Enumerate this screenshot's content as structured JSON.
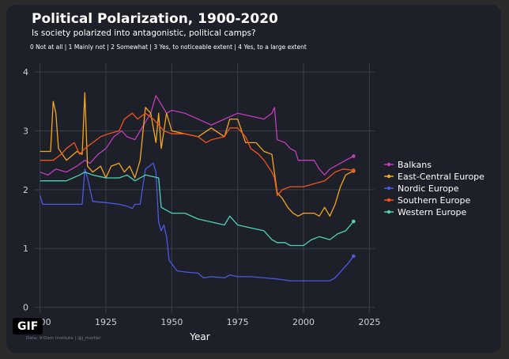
{
  "badge": "GIF",
  "credit": "Data: V-Dem Institute | @j_marlier",
  "colors": {
    "background": "#1d1f29",
    "grid": "#3a3d4a",
    "text": "#ffffff",
    "axis_text": "#cfd0d6"
  },
  "chart_data": {
    "type": "line",
    "title": "Political Polarization, 1900-2020",
    "subtitle": "Is society polarized into antagonistic, political camps?",
    "scale_note": "0 Not at all | 1 Mainly not | 2 Somewhat | 3 Yes, to noticeable extent | 4 Yes, to a large extent",
    "xlabel": "Year",
    "ylabel": "",
    "xlim": [
      1898,
      2027
    ],
    "ylim": [
      -0.1,
      4.15
    ],
    "xticks": [
      1900,
      1925,
      1950,
      1975,
      2000,
      2025
    ],
    "yticks": [
      0,
      1,
      2,
      3,
      4
    ],
    "grid": true,
    "legend_position": "right",
    "series": [
      {
        "name": "Balkans",
        "color": "#c23dbb",
        "points": [
          [
            1900,
            2.3
          ],
          [
            1903,
            2.25
          ],
          [
            1906,
            2.35
          ],
          [
            1910,
            2.3
          ],
          [
            1914,
            2.4
          ],
          [
            1917,
            2.5
          ],
          [
            1919,
            2.45
          ],
          [
            1922,
            2.6
          ],
          [
            1925,
            2.7
          ],
          [
            1928,
            2.9
          ],
          [
            1931,
            3.0
          ],
          [
            1933,
            2.9
          ],
          [
            1936,
            2.85
          ],
          [
            1938,
            3.0
          ],
          [
            1940,
            3.15
          ],
          [
            1942,
            3.3
          ],
          [
            1944,
            3.6
          ],
          [
            1946,
            3.45
          ],
          [
            1948,
            3.3
          ],
          [
            1950,
            3.35
          ],
          [
            1955,
            3.3
          ],
          [
            1960,
            3.2
          ],
          [
            1965,
            3.1
          ],
          [
            1970,
            3.2
          ],
          [
            1975,
            3.3
          ],
          [
            1980,
            3.25
          ],
          [
            1985,
            3.2
          ],
          [
            1988,
            3.3
          ],
          [
            1989,
            3.4
          ],
          [
            1990,
            2.85
          ],
          [
            1993,
            2.8
          ],
          [
            1995,
            2.7
          ],
          [
            1997,
            2.65
          ],
          [
            1998,
            2.5
          ],
          [
            2000,
            2.5
          ],
          [
            2004,
            2.5
          ],
          [
            2006,
            2.35
          ],
          [
            2008,
            2.25
          ],
          [
            2010,
            2.35
          ],
          [
            2014,
            2.45
          ],
          [
            2016,
            2.5
          ],
          [
            2019,
            2.57
          ]
        ]
      },
      {
        "name": "East-Central Europe",
        "color": "#f3a722",
        "points": [
          [
            1900,
            2.65
          ],
          [
            1904,
            2.65
          ],
          [
            1905,
            3.5
          ],
          [
            1906,
            3.3
          ],
          [
            1907,
            2.7
          ],
          [
            1910,
            2.5
          ],
          [
            1914,
            2.65
          ],
          [
            1916,
            2.6
          ],
          [
            1917,
            3.65
          ],
          [
            1918,
            2.4
          ],
          [
            1920,
            2.3
          ],
          [
            1923,
            2.4
          ],
          [
            1925,
            2.2
          ],
          [
            1927,
            2.4
          ],
          [
            1930,
            2.45
          ],
          [
            1932,
            2.3
          ],
          [
            1934,
            2.4
          ],
          [
            1936,
            2.2
          ],
          [
            1938,
            2.5
          ],
          [
            1940,
            3.4
          ],
          [
            1942,
            3.3
          ],
          [
            1944,
            2.8
          ],
          [
            1945,
            3.3
          ],
          [
            1946,
            2.7
          ],
          [
            1948,
            3.3
          ],
          [
            1950,
            3.0
          ],
          [
            1955,
            2.95
          ],
          [
            1960,
            2.9
          ],
          [
            1965,
            3.05
          ],
          [
            1970,
            2.9
          ],
          [
            1972,
            3.2
          ],
          [
            1975,
            3.2
          ],
          [
            1978,
            2.8
          ],
          [
            1982,
            2.8
          ],
          [
            1985,
            2.65
          ],
          [
            1988,
            2.6
          ],
          [
            1990,
            1.95
          ],
          [
            1992,
            1.85
          ],
          [
            1994,
            1.7
          ],
          [
            1996,
            1.6
          ],
          [
            1998,
            1.55
          ],
          [
            2000,
            1.6
          ],
          [
            2004,
            1.6
          ],
          [
            2006,
            1.55
          ],
          [
            2008,
            1.7
          ],
          [
            2010,
            1.55
          ],
          [
            2012,
            1.75
          ],
          [
            2014,
            2.05
          ],
          [
            2016,
            2.25
          ],
          [
            2019,
            2.32
          ]
        ]
      },
      {
        "name": "Nordic Europe",
        "color": "#4b5ae0",
        "points": [
          [
            1900,
            1.9
          ],
          [
            1901,
            1.75
          ],
          [
            1910,
            1.75
          ],
          [
            1916,
            1.75
          ],
          [
            1917,
            2.35
          ],
          [
            1918,
            2.2
          ],
          [
            1920,
            1.8
          ],
          [
            1925,
            1.78
          ],
          [
            1930,
            1.75
          ],
          [
            1933,
            1.72
          ],
          [
            1935,
            1.68
          ],
          [
            1936,
            1.75
          ],
          [
            1938,
            1.75
          ],
          [
            1940,
            2.35
          ],
          [
            1943,
            2.45
          ],
          [
            1944,
            2.3
          ],
          [
            1945,
            1.45
          ],
          [
            1946,
            1.3
          ],
          [
            1947,
            1.4
          ],
          [
            1948,
            1.2
          ],
          [
            1949,
            0.8
          ],
          [
            1952,
            0.62
          ],
          [
            1955,
            0.6
          ],
          [
            1960,
            0.58
          ],
          [
            1962,
            0.5
          ],
          [
            1965,
            0.52
          ],
          [
            1970,
            0.5
          ],
          [
            1972,
            0.55
          ],
          [
            1975,
            0.52
          ],
          [
            1980,
            0.52
          ],
          [
            1985,
            0.5
          ],
          [
            1990,
            0.48
          ],
          [
            1995,
            0.45
          ],
          [
            2000,
            0.45
          ],
          [
            2005,
            0.45
          ],
          [
            2010,
            0.45
          ],
          [
            2012,
            0.5
          ],
          [
            2015,
            0.65
          ],
          [
            2017,
            0.75
          ],
          [
            2019,
            0.87
          ]
        ]
      },
      {
        "name": "Southern Europe",
        "color": "#f2541b",
        "points": [
          [
            1900,
            2.5
          ],
          [
            1905,
            2.5
          ],
          [
            1908,
            2.6
          ],
          [
            1910,
            2.7
          ],
          [
            1913,
            2.8
          ],
          [
            1915,
            2.6
          ],
          [
            1917,
            2.7
          ],
          [
            1920,
            2.8
          ],
          [
            1923,
            2.9
          ],
          [
            1926,
            2.95
          ],
          [
            1930,
            3.0
          ],
          [
            1932,
            3.2
          ],
          [
            1935,
            3.3
          ],
          [
            1937,
            3.2
          ],
          [
            1940,
            3.3
          ],
          [
            1943,
            3.2
          ],
          [
            1945,
            3.1
          ],
          [
            1947,
            3.0
          ],
          [
            1950,
            2.95
          ],
          [
            1955,
            2.95
          ],
          [
            1960,
            2.9
          ],
          [
            1963,
            2.8
          ],
          [
            1965,
            2.85
          ],
          [
            1970,
            2.9
          ],
          [
            1972,
            3.05
          ],
          [
            1975,
            3.05
          ],
          [
            1978,
            2.9
          ],
          [
            1980,
            2.7
          ],
          [
            1983,
            2.6
          ],
          [
            1985,
            2.5
          ],
          [
            1988,
            2.3
          ],
          [
            1989,
            2.2
          ],
          [
            1990,
            1.9
          ],
          [
            1992,
            2.0
          ],
          [
            1995,
            2.05
          ],
          [
            2000,
            2.05
          ],
          [
            2004,
            2.1
          ],
          [
            2008,
            2.15
          ],
          [
            2012,
            2.3
          ],
          [
            2015,
            2.35
          ],
          [
            2019,
            2.33
          ]
        ]
      },
      {
        "name": "Western Europe",
        "color": "#4fd3b6",
        "points": [
          [
            1900,
            2.15
          ],
          [
            1905,
            2.15
          ],
          [
            1910,
            2.15
          ],
          [
            1915,
            2.25
          ],
          [
            1917,
            2.3
          ],
          [
            1920,
            2.25
          ],
          [
            1925,
            2.2
          ],
          [
            1930,
            2.2
          ],
          [
            1933,
            2.25
          ],
          [
            1936,
            2.15
          ],
          [
            1940,
            2.25
          ],
          [
            1945,
            2.2
          ],
          [
            1946,
            1.7
          ],
          [
            1948,
            1.65
          ],
          [
            1950,
            1.6
          ],
          [
            1955,
            1.6
          ],
          [
            1960,
            1.5
          ],
          [
            1965,
            1.45
          ],
          [
            1970,
            1.4
          ],
          [
            1972,
            1.55
          ],
          [
            1975,
            1.4
          ],
          [
            1980,
            1.35
          ],
          [
            1985,
            1.3
          ],
          [
            1988,
            1.15
          ],
          [
            1990,
            1.1
          ],
          [
            1993,
            1.1
          ],
          [
            1995,
            1.05
          ],
          [
            2000,
            1.05
          ],
          [
            2003,
            1.15
          ],
          [
            2006,
            1.2
          ],
          [
            2010,
            1.15
          ],
          [
            2013,
            1.25
          ],
          [
            2016,
            1.3
          ],
          [
            2019,
            1.46
          ]
        ]
      }
    ]
  }
}
